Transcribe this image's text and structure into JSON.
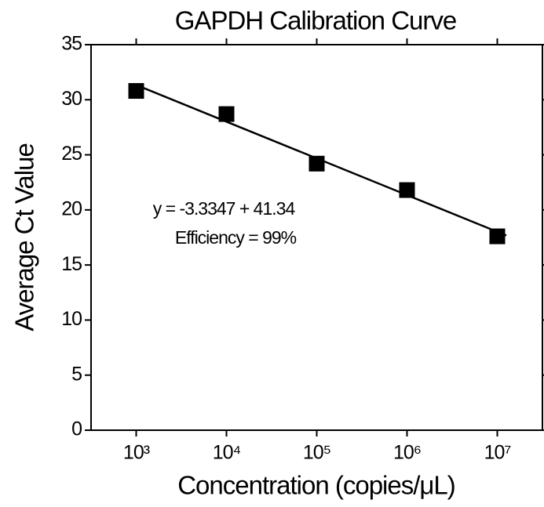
{
  "chart_data": {
    "type": "scatter",
    "title": "GAPDH Calibration Curve",
    "xlabel": "Concentration (copies/μL)",
    "ylabel": "Average Ct Value",
    "xscale": "log",
    "series": [
      {
        "x": [
          1000,
          10000,
          100000,
          1000000,
          10000000
        ],
        "values": [
          30.8,
          28.7,
          24.2,
          21.8,
          17.6
        ],
        "color": "#000000",
        "marker": "square"
      },
      {
        "type": "line",
        "x": [
          1000,
          12589254
        ],
        "values": [
          31.34,
          17.68
        ],
        "color": "#000000"
      }
    ],
    "annotations": [
      "y = -3.3347 + 41.34",
      "Efficiency = 99%"
    ],
    "xlim": [
      316.2,
      31622777
    ],
    "ylim": [
      0,
      35
    ],
    "xticks": [
      {
        "value": 1000,
        "label": "10³"
      },
      {
        "value": 10000,
        "label": "10⁴"
      },
      {
        "value": 100000,
        "label": "10⁵"
      },
      {
        "value": 1000000,
        "label": "10⁶"
      },
      {
        "value": 10000000,
        "label": "10⁷"
      }
    ],
    "yticks": [
      0,
      5,
      10,
      15,
      20,
      25,
      30,
      35
    ],
    "grid": false
  }
}
